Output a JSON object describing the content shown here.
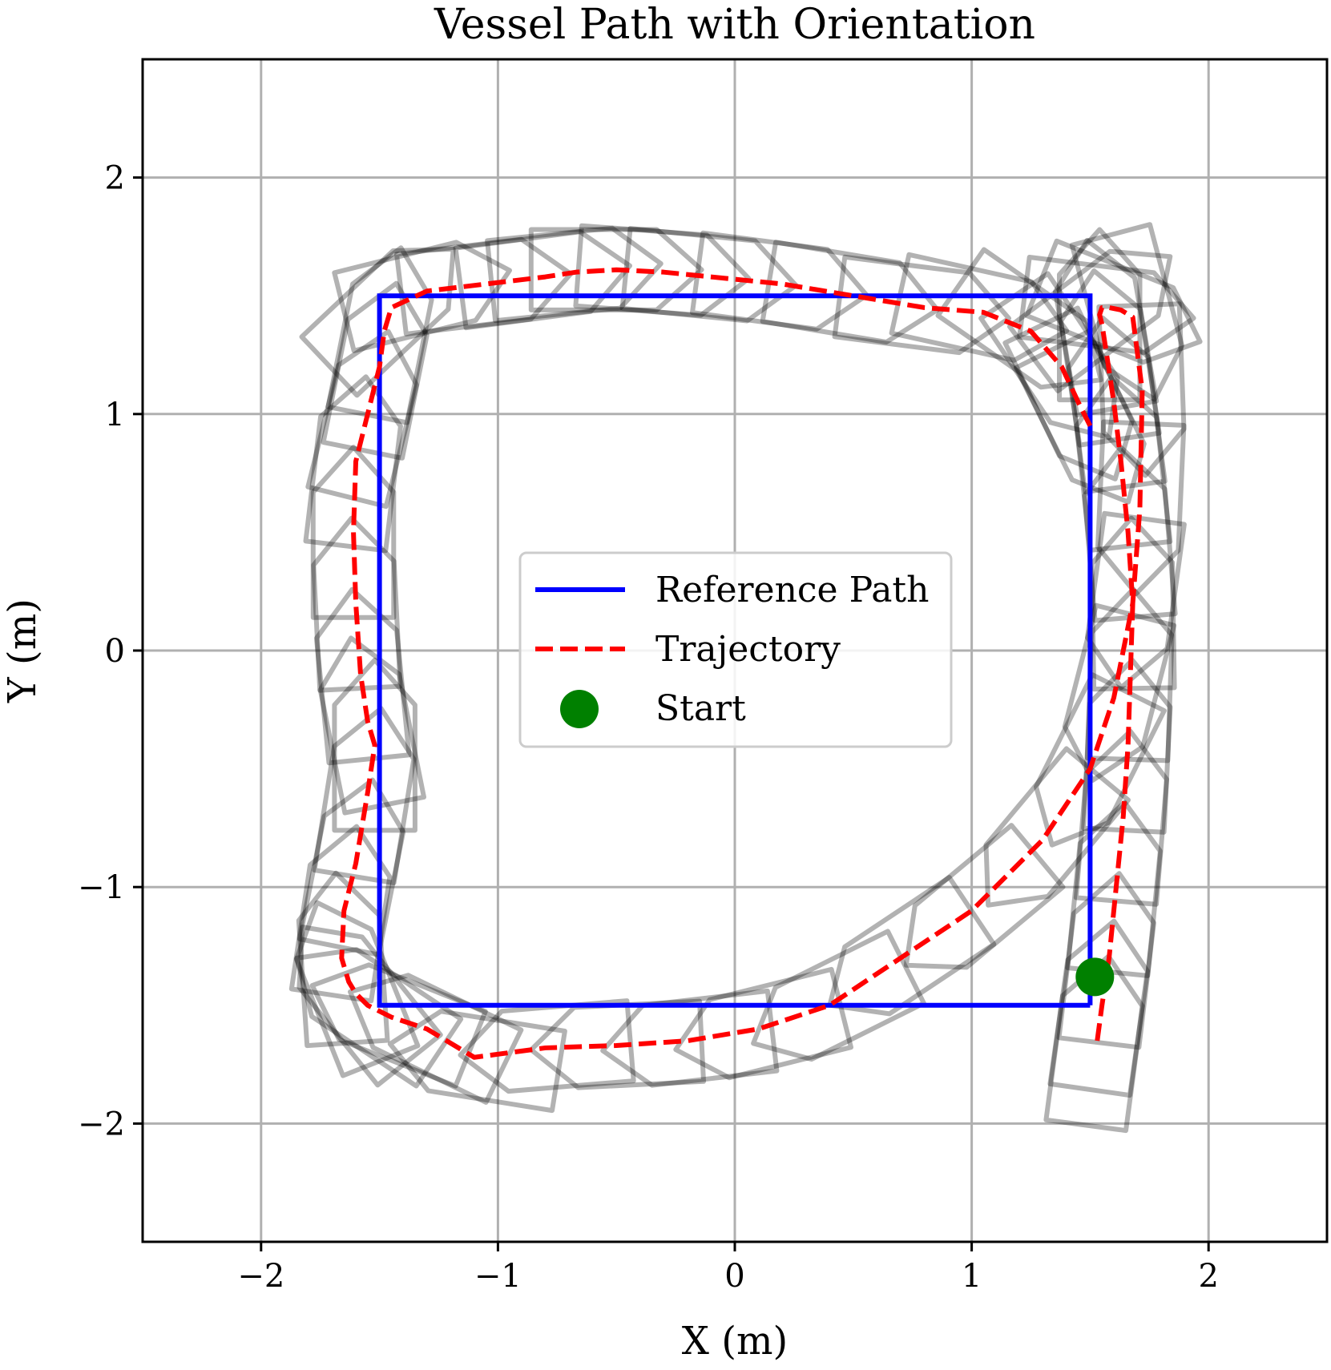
{
  "chart_data": {
    "type": "line",
    "title": "Vessel Path with Orientation",
    "xlabel": "X (m)",
    "ylabel": "Y (m)",
    "xlim": [
      -2.5,
      2.5
    ],
    "ylim": [
      -2.5,
      2.5
    ],
    "xticks": [
      -2,
      -1,
      0,
      1,
      2
    ],
    "yticks": [
      -2,
      -1,
      0,
      1,
      2
    ],
    "xtick_labels": [
      "−2",
      "−1",
      "0",
      "1",
      "2"
    ],
    "ytick_labels": [
      "−2",
      "−1",
      "0",
      "1",
      "2"
    ],
    "grid": true,
    "legend_position": "center",
    "series": [
      {
        "name": "Reference Path",
        "style": "solid",
        "color": "#0000ff",
        "x": [
          1.5,
          1.5,
          -1.5,
          -1.5,
          1.5
        ],
        "y": [
          -1.5,
          1.5,
          1.5,
          -1.5,
          -1.5
        ]
      },
      {
        "name": "Trajectory",
        "style": "dashed",
        "color": "#ff0000",
        "x": [
          1.53,
          1.55,
          1.58,
          1.61,
          1.64,
          1.66,
          1.67,
          1.68,
          1.66,
          1.63,
          1.6,
          1.57,
          1.55,
          1.54,
          1.55,
          1.58,
          1.63,
          1.68,
          1.72,
          1.71,
          1.68,
          1.6,
          1.5,
          1.3,
          1.0,
          0.7,
          0.4,
          0.1,
          -0.2,
          -0.5,
          -0.8,
          -1.1,
          -1.3,
          -1.45,
          -1.55,
          -1.6,
          -1.63,
          -1.66,
          -1.65,
          -1.6,
          -1.55,
          -1.52,
          -1.55,
          -1.58,
          -1.6,
          -1.61,
          -1.6,
          -1.55,
          -1.5,
          -1.48,
          -1.45,
          -1.3,
          -1.05,
          -0.8,
          -0.67,
          -0.5,
          -0.3,
          -0.1,
          0.2,
          0.5,
          0.8,
          1.05,
          1.25,
          1.38,
          1.45,
          1.5
        ],
        "y": [
          -1.65,
          -1.5,
          -1.3,
          -1.0,
          -0.7,
          -0.4,
          -0.1,
          0.2,
          0.5,
          0.8,
          1.05,
          1.25,
          1.38,
          1.42,
          1.45,
          1.45,
          1.44,
          1.41,
          1.1,
          0.6,
          0.2,
          -0.2,
          -0.5,
          -0.8,
          -1.1,
          -1.3,
          -1.5,
          -1.6,
          -1.65,
          -1.67,
          -1.68,
          -1.72,
          -1.6,
          -1.55,
          -1.5,
          -1.45,
          -1.4,
          -1.3,
          -1.1,
          -0.9,
          -0.6,
          -0.4,
          -0.3,
          -0.1,
          0.2,
          0.5,
          0.8,
          1.0,
          1.2,
          1.35,
          1.45,
          1.52,
          1.55,
          1.58,
          1.6,
          1.61,
          1.6,
          1.58,
          1.55,
          1.5,
          1.45,
          1.43,
          1.35,
          1.2,
          1.05,
          0.95
        ]
      },
      {
        "name": "Start",
        "style": "marker",
        "color": "#008000",
        "x": [
          1.52
        ],
        "y": [
          -1.38
        ]
      }
    ],
    "vessel_color": "#000000",
    "vessel_opacity": 0.3
  }
}
